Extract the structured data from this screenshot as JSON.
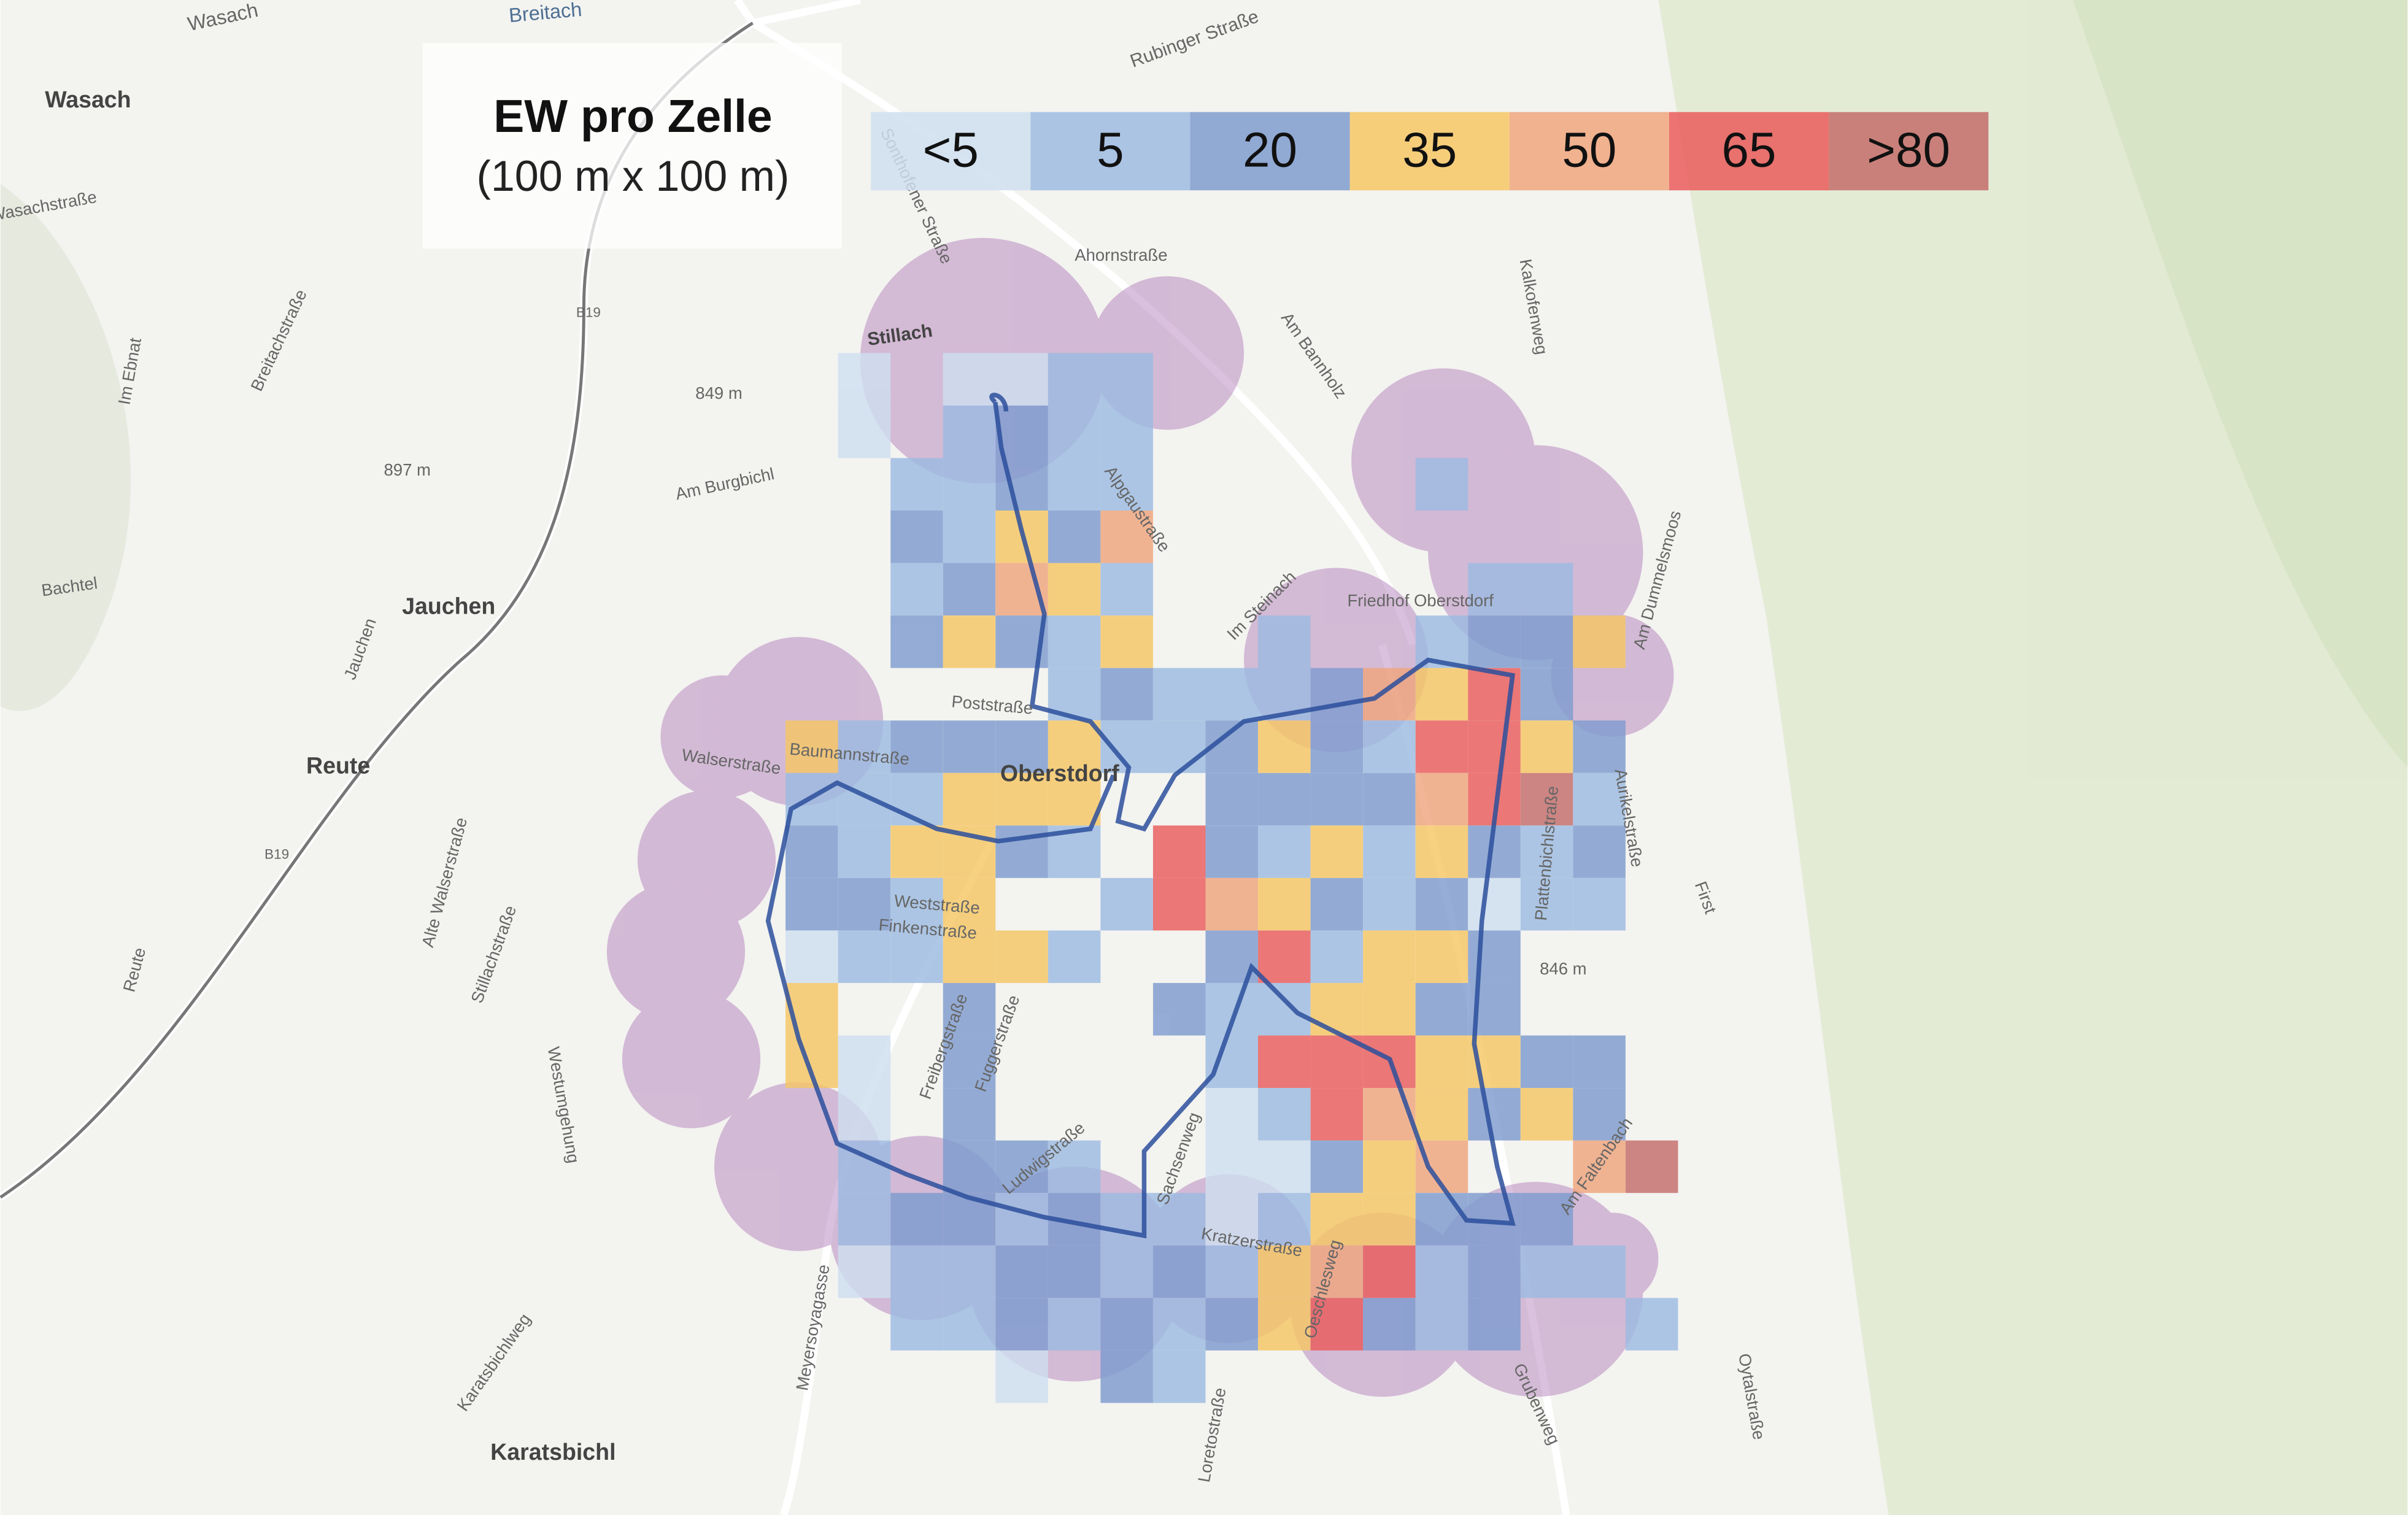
{
  "legend": {
    "title": "EW pro Zelle",
    "subtitle": "(100 m x 100 m)",
    "items": [
      {
        "label": "<5",
        "color": "#cfdff0"
      },
      {
        "label": "5",
        "color": "#9dbbe2"
      },
      {
        "label": "20",
        "color": "#7f9ccf"
      },
      {
        "label": "35",
        "color": "#f6c765"
      },
      {
        "label": "50",
        "color": "#f0a67e"
      },
      {
        "label": "65",
        "color": "#ea5c5c"
      },
      {
        "label": ">80",
        "color": "#c46d6a"
      }
    ]
  },
  "map": {
    "labels": [
      "Wasach",
      "Wasach",
      "Breitach",
      "Rubinger Straße",
      "Sonthofener Straße",
      "Ahornstraße",
      "Stillach",
      "B19",
      "849 m",
      "897 m",
      "Am Burgbichl",
      "Jauchen",
      "Reute",
      "Breitachstraße",
      "Im Ebnat",
      "Bachtel",
      "Alpgaustraße",
      "Im Steinach",
      "Am Bannholz",
      "Kalkofenweg",
      "Friedhof Oberstdorf",
      "Am Dummelsmoos",
      "Oberstdorf",
      "Poststraße",
      "Baumannstraße",
      "Walserstraße",
      "Weststraße",
      "Finkenstraße",
      "Plattenbichlstraße",
      "Aurikelstraße",
      "First",
      "846 m",
      "Alte Walserstraße",
      "Stillachstraße",
      "Westumgehung",
      "Reute",
      "B19",
      "Freibergstraße",
      "Fuggerstraße",
      "Ludwigstraße",
      "Sachsenweg",
      "Kratzerstraße",
      "Oeschlesweg",
      "Am Faltenbach",
      "Meyersoyagasse",
      "Karatsbichlweg",
      "Karatsbichl",
      "Loretostraße",
      "Grubenweg",
      "Oytalstraße",
      "Wasachstraße",
      "Jauchen"
    ]
  }
}
